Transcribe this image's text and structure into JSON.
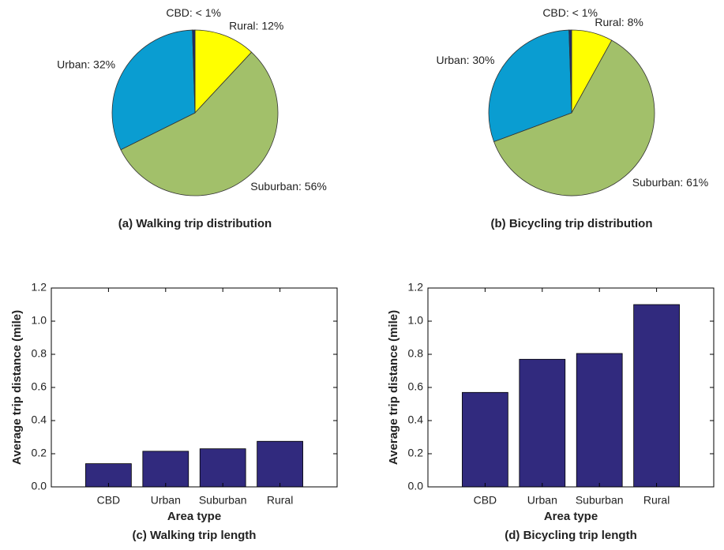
{
  "chart_data": [
    {
      "type": "pie",
      "title": "(a) Walking trip distribution",
      "values": [
        12,
        56,
        32,
        0.5
      ],
      "value_labels": [
        "Rural: 12%",
        "Suburban: 56%",
        "Urban: 32%",
        "CBD: < 1%"
      ],
      "colors": [
        "#ffff00",
        "#a2c06a",
        "#0a9dd1",
        "#1f2a6b"
      ]
    },
    {
      "type": "pie",
      "title": "(b) Bicycling trip distribution",
      "values": [
        8,
        61,
        30,
        0.5
      ],
      "value_labels": [
        "Rural: 8%",
        "Suburban: 61%",
        "Urban: 30%",
        "CBD: < 1%"
      ],
      "colors": [
        "#ffff00",
        "#a2c06a",
        "#0a9dd1",
        "#1f2a6b"
      ]
    },
    {
      "type": "bar",
      "title": "(c) Walking trip length",
      "x_label": "Area type",
      "y_label": "Average trip distance (mile)",
      "categories": [
        "CBD",
        "Urban",
        "Suburban",
        "Rural"
      ],
      "values": [
        0.14,
        0.215,
        0.23,
        0.275
      ],
      "color": "#312a7e",
      "ylim": [
        0,
        1.2
      ],
      "yticks": [
        {
          "value": 0,
          "label": "0.0"
        },
        {
          "value": 0.2,
          "label": "0.2"
        },
        {
          "value": 0.4,
          "label": "0.4"
        },
        {
          "value": 0.6,
          "label": "0.6"
        },
        {
          "value": 0.8,
          "label": "0.8"
        },
        {
          "value": 1,
          "label": "1.0"
        },
        {
          "value": 1.2,
          "label": "1.2"
        }
      ]
    },
    {
      "type": "bar",
      "title": "(d) Bicycling trip length",
      "x_label": "Area type",
      "y_label": "Average trip distance (mile)",
      "categories": [
        "CBD",
        "Urban",
        "Suburban",
        "Rural"
      ],
      "values": [
        0.57,
        0.77,
        0.805,
        1.1
      ],
      "color": "#312a7e",
      "ylim": [
        0,
        1.2
      ],
      "yticks": [
        {
          "value": 0,
          "label": "0.0"
        },
        {
          "value": 0.2,
          "label": "0.2"
        },
        {
          "value": 0.4,
          "label": "0.4"
        },
        {
          "value": 0.6,
          "label": "0.6"
        },
        {
          "value": 0.8,
          "label": "0.8"
        },
        {
          "value": 1,
          "label": "1.0"
        },
        {
          "value": 1.2,
          "label": "1.2"
        }
      ]
    }
  ]
}
